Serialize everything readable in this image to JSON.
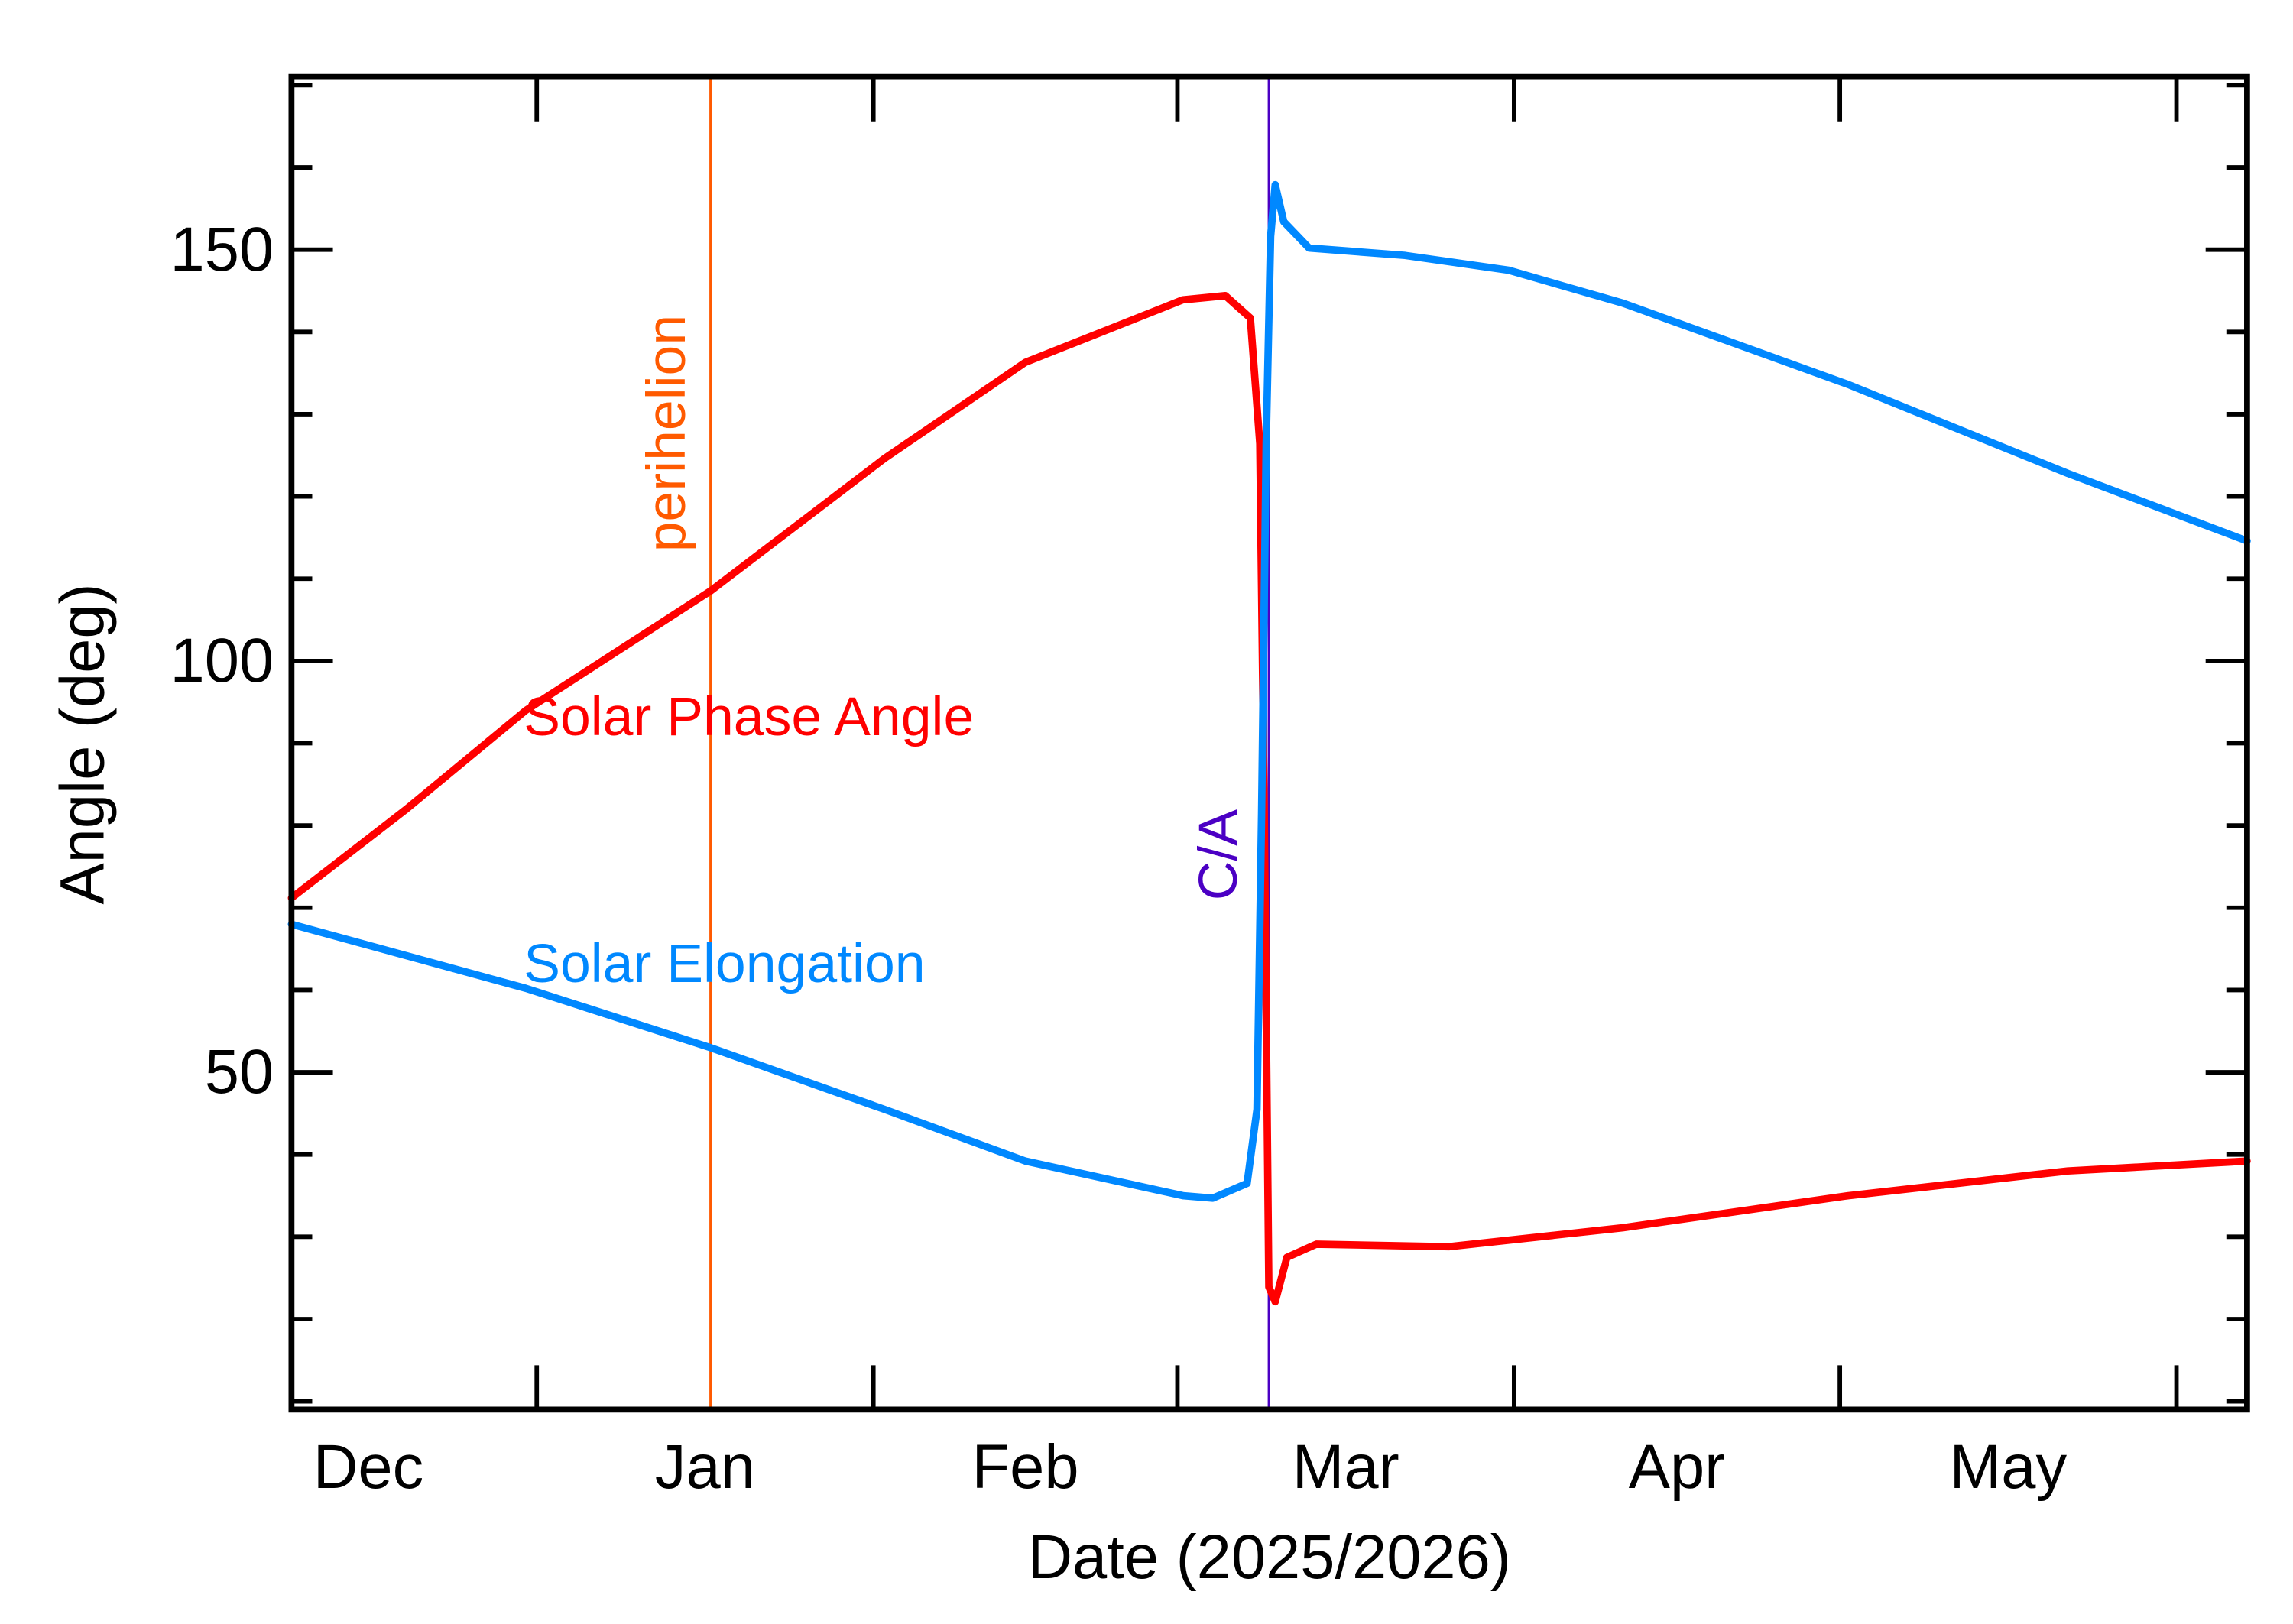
{
  "chart_data": {
    "type": "line",
    "title": "",
    "xlabel": "Date (2025/2026)",
    "ylabel": "Angle (deg)",
    "xlim": [
      "2025-12-09T10:00",
      "2026-06-07T12:00"
    ],
    "ylim": [
      9,
      171
    ],
    "grid": false,
    "y_major_ticks": [
      50,
      100,
      150
    ],
    "y_tick_labels": [
      "50",
      "100",
      "150"
    ],
    "y_minor_tick_step": 10,
    "x_major_ticks": [
      "2026-01-01",
      "2026-02-01",
      "2026-03-01",
      "2026-04-01",
      "2026-05-01",
      "2026-06-01"
    ],
    "x_month_labels": [
      {
        "label": "Dec",
        "start": "2025-12-01",
        "end": "2026-01-01"
      },
      {
        "label": "Jan",
        "start": "2026-01-01",
        "end": "2026-02-01"
      },
      {
        "label": "Feb",
        "start": "2026-02-01",
        "end": "2026-03-01"
      },
      {
        "label": "Mar",
        "start": "2026-03-01",
        "end": "2026-04-01"
      },
      {
        "label": "Apr",
        "start": "2026-04-01",
        "end": "2026-05-01"
      },
      {
        "label": "May",
        "start": "2026-05-01",
        "end": "2026-06-01"
      }
    ],
    "series": [
      {
        "name": "Solar Phase Angle",
        "color": "#ff0000",
        "points": [
          [
            "2025-12-09T10:00",
            71.2
          ],
          [
            "2025-12-20T00:00",
            82.0
          ],
          [
            "2025-12-31T00:00",
            94.0
          ],
          [
            "2026-01-17T00:00",
            108.5
          ],
          [
            "2026-02-02T00:00",
            124.6
          ],
          [
            "2026-02-15T00:00",
            136.3
          ],
          [
            "2026-03-01T12:00",
            143.9
          ],
          [
            "2026-03-05T10:00",
            144.4
          ],
          [
            "2026-03-07T17:00",
            141.7
          ],
          [
            "2026-03-08T14:00",
            126.4
          ],
          [
            "2026-03-09T00:00",
            81.5
          ],
          [
            "2026-03-09T10:00",
            23.9
          ],
          [
            "2026-03-10T00:00",
            22.1
          ],
          [
            "2026-03-11T02:00",
            27.5
          ],
          [
            "2026-03-13T19:00",
            29.1
          ],
          [
            "2026-03-26T00:00",
            28.8
          ],
          [
            "2026-04-11T00:00",
            31.1
          ],
          [
            "2026-05-01T19:00",
            35.0
          ],
          [
            "2026-05-22T00:00",
            38.0
          ],
          [
            "2026-06-07T12:00",
            39.2
          ]
        ]
      },
      {
        "name": "Solar Elongation",
        "color": "#0088ff",
        "points": [
          [
            "2025-12-09T10:00",
            68.0
          ],
          [
            "2025-12-31T00:00",
            60.2
          ],
          [
            "2026-01-17T00:00",
            53.0
          ],
          [
            "2026-02-02T00:00",
            45.5
          ],
          [
            "2026-02-15T00:00",
            39.2
          ],
          [
            "2026-03-01T12:00",
            35.0
          ],
          [
            "2026-03-04T06:00",
            34.7
          ],
          [
            "2026-03-07T10:00",
            36.5
          ],
          [
            "2026-03-08T08:00",
            45.5
          ],
          [
            "2026-03-08T18:00",
            81.5
          ],
          [
            "2026-03-09T04:00",
            126.4
          ],
          [
            "2026-03-09T14:00",
            151.6
          ],
          [
            "2026-03-10T00:00",
            157.9
          ],
          [
            "2026-03-10T19:00",
            153.4
          ],
          [
            "2026-03-13T03:00",
            150.2
          ],
          [
            "2026-03-21T23:00",
            149.3
          ],
          [
            "2026-03-31T12:00",
            147.5
          ],
          [
            "2026-04-11T00:00",
            143.5
          ],
          [
            "2026-05-01T19:00",
            133.6
          ],
          [
            "2026-05-22T00:00",
            122.8
          ],
          [
            "2026-06-07T12:00",
            114.6
          ]
        ]
      }
    ],
    "annotations": [
      {
        "label": "perihelion",
        "date": "2026-01-17T00:00",
        "color": "#ff5a00"
      },
      {
        "label": "C/A",
        "date": "2026-03-09T10:00",
        "color": "#4b00c4"
      }
    ]
  }
}
